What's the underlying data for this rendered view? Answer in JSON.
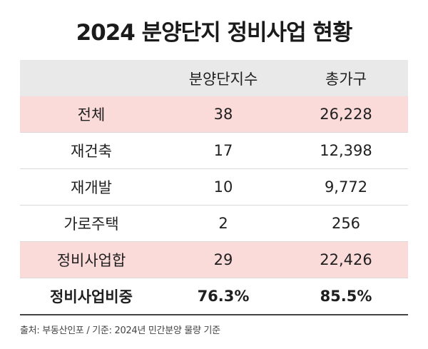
{
  "title": "2024 분양단지 정비사업 현황",
  "table": {
    "headers": [
      "",
      "분양단지수",
      "총가구"
    ],
    "rows": [
      {
        "label": "전체",
        "complexes": "38",
        "households": "26,228",
        "highlight": true
      },
      {
        "label": "재건축",
        "complexes": "17",
        "households": "12,398",
        "highlight": false
      },
      {
        "label": "재개발",
        "complexes": "10",
        "households": "9,772",
        "highlight": false
      },
      {
        "label": "가로주택",
        "complexes": "2",
        "households": "256",
        "highlight": false
      },
      {
        "label": "정비사업합",
        "complexes": "29",
        "households": "22,426",
        "highlight": true
      },
      {
        "label": "정비사업비중",
        "complexes": "76.3%",
        "households": "85.5%",
        "highlight": false
      }
    ]
  },
  "source": "출처: 부동산인포 / 기준: 2024년 민간분양 물량 기준",
  "colors": {
    "header_bg": "#e9e9e9",
    "highlight_bg": "#fbdada"
  }
}
